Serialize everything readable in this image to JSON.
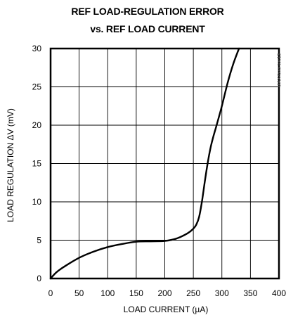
{
  "chart_data": {
    "type": "line",
    "title": "REF LOAD-REGULATION ERROR",
    "subtitle": "vs. REF LOAD CURRENT",
    "xlabel": "LOAD CURRENT (µA)",
    "ylabel": "LOAD REGULATION ΔV (mV)",
    "xlim": [
      0,
      400
    ],
    "ylim": [
      0,
      30
    ],
    "x_ticks": [
      "0",
      "50",
      "100",
      "150",
      "200",
      "250",
      "300",
      "350",
      "400"
    ],
    "y_ticks": [
      "0",
      "5",
      "10",
      "15",
      "20",
      "25",
      "30"
    ],
    "grid": true,
    "side_text": "MAX4xxx toc13",
    "series": [
      {
        "x": [
          0,
          10,
          25,
          50,
          75,
          100,
          125,
          150,
          175,
          200,
          220,
          240,
          250,
          255,
          260,
          265,
          270,
          275,
          280,
          285,
          290,
          300,
          310,
          320,
          330
        ],
        "y": [
          0,
          0.8,
          1.6,
          2.7,
          3.5,
          4.1,
          4.5,
          4.8,
          4.85,
          4.9,
          5.2,
          5.9,
          6.5,
          7.0,
          8.0,
          10.0,
          12.6,
          15.0,
          17.0,
          18.5,
          19.8,
          22.5,
          25.5,
          28.0,
          30.0
        ]
      }
    ]
  }
}
